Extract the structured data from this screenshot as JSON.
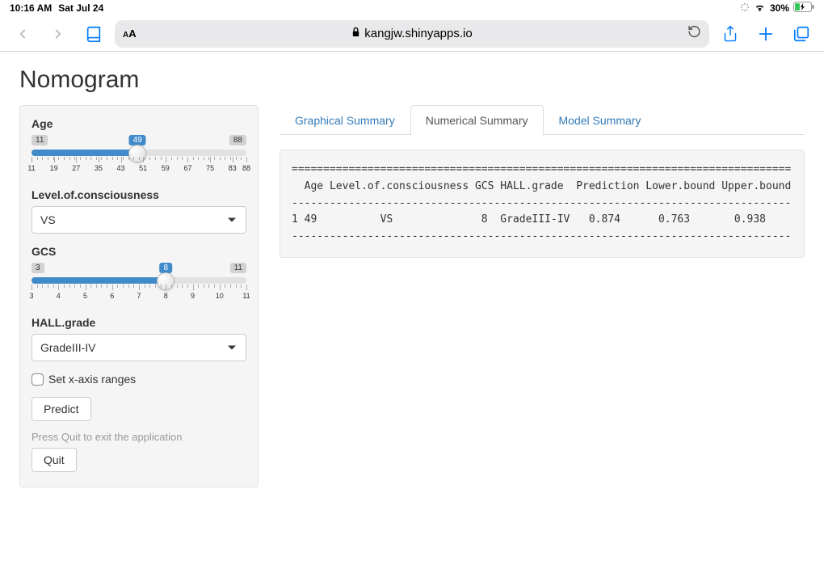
{
  "statusbar": {
    "time": "10:16 AM",
    "date": "Sat Jul 24",
    "battery_pct": "30%"
  },
  "safari": {
    "host": "kangjw.shinyapps.io"
  },
  "page": {
    "title": "Nomogram"
  },
  "sidebar": {
    "age": {
      "label": "Age",
      "min": "11",
      "max": "88",
      "value": "49",
      "ticks": [
        "11",
        "19",
        "27",
        "35",
        "43",
        "51",
        "59",
        "67",
        "75",
        "83",
        "88"
      ]
    },
    "loc": {
      "label": "Level.of.consciousness",
      "selected": "VS"
    },
    "gcs": {
      "label": "GCS",
      "min": "3",
      "max": "11",
      "value": "8",
      "ticks": [
        "3",
        "4",
        "5",
        "6",
        "7",
        "8",
        "9",
        "10",
        "11"
      ]
    },
    "hall": {
      "label": "HALL.grade",
      "selected": "GradeIII-IV"
    },
    "checkbox_label": "Set x-axis ranges",
    "predict_label": "Predict",
    "quit_helper": "Press Quit to exit the application",
    "quit_label": "Quit"
  },
  "tabs": {
    "graphical": "Graphical Summary",
    "numerical": "Numerical Summary",
    "model": "Model Summary"
  },
  "output_lines": [
    "===============================================================================",
    "  Age Level.of.consciousness GCS HALL.grade  Prediction Lower.bound Upper.bound",
    "-------------------------------------------------------------------------------",
    "1 49          VS              8  GradeIII-IV   0.874      0.763       0.938   ",
    "-------------------------------------------------------------------------------"
  ]
}
